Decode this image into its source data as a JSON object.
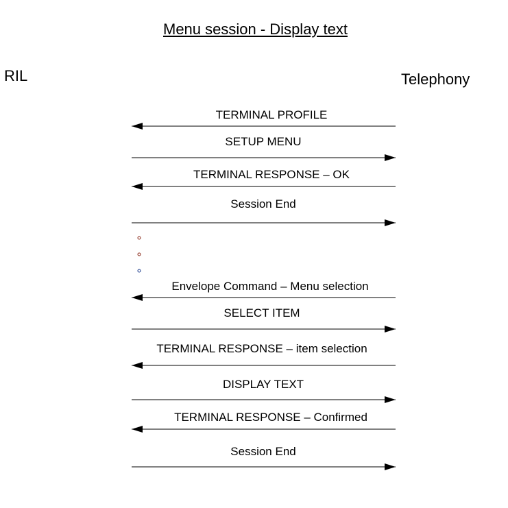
{
  "title": "Menu session - Display text",
  "participants": {
    "left": "RIL",
    "right": "Telephony"
  },
  "messages": [
    {
      "label": "TERMINAL PROFILE",
      "direction": "to-left"
    },
    {
      "label": "SETUP MENU",
      "direction": "to-right"
    },
    {
      "label": "TERMINAL RESPONSE – OK",
      "direction": "to-left"
    },
    {
      "label": "Session End",
      "direction": "to-right"
    },
    {
      "label": "Envelope Command – Menu selection",
      "direction": "to-left"
    },
    {
      "label": "SELECT ITEM",
      "direction": "to-right"
    },
    {
      "label": "TERMINAL RESPONSE – item selection",
      "direction": "to-left"
    },
    {
      "label": "DISPLAY TEXT",
      "direction": "to-right"
    },
    {
      "label": "TERMINAL RESPONSE – Confirmed",
      "direction": "to-left"
    },
    {
      "label": "Session End",
      "direction": "to-right"
    }
  ],
  "ellipsis_dot_colors": [
    "#8b2a1a",
    "#8b2a1a",
    "#1a3a8b"
  ]
}
